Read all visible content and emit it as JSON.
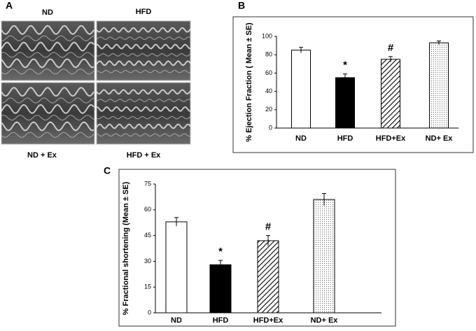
{
  "panel_a": {
    "label": "A",
    "images": [
      "ND",
      "HFD",
      "ND + Ex",
      "HFD + Ex"
    ]
  },
  "chart_data": [
    {
      "type": "bar",
      "panel_label": "B",
      "y_label": "% Ejection Fraction ( Mean ± SE)",
      "categories": [
        "ND",
        "HFD",
        "HFD+Ex",
        "ND+ Ex"
      ],
      "values": [
        85,
        55,
        75,
        93
      ],
      "errors": [
        3,
        4,
        3,
        2
      ],
      "fills": [
        "white",
        "black",
        "hatch",
        "dots"
      ],
      "bar_labels": [
        null,
        "*",
        "#",
        null
      ],
      "ylim": [
        0,
        100
      ],
      "yticks": [
        0,
        20,
        40,
        60,
        80,
        100
      ]
    },
    {
      "type": "bar",
      "panel_label": "C",
      "y_label": "% Fractional shortening (Mean ± SE)",
      "categories": [
        "ND",
        "HFD",
        "HFD+Ex",
        "ND+ Ex"
      ],
      "values": [
        53,
        28,
        42,
        66
      ],
      "errors": [
        2.5,
        2.5,
        3,
        3.5
      ],
      "fills": [
        "white",
        "black",
        "hatch",
        "dots"
      ],
      "bar_labels": [
        null,
        "*",
        "#",
        null
      ],
      "ylim": [
        0,
        75
      ],
      "yticks": [
        0,
        15,
        30,
        45,
        60,
        75
      ]
    }
  ]
}
